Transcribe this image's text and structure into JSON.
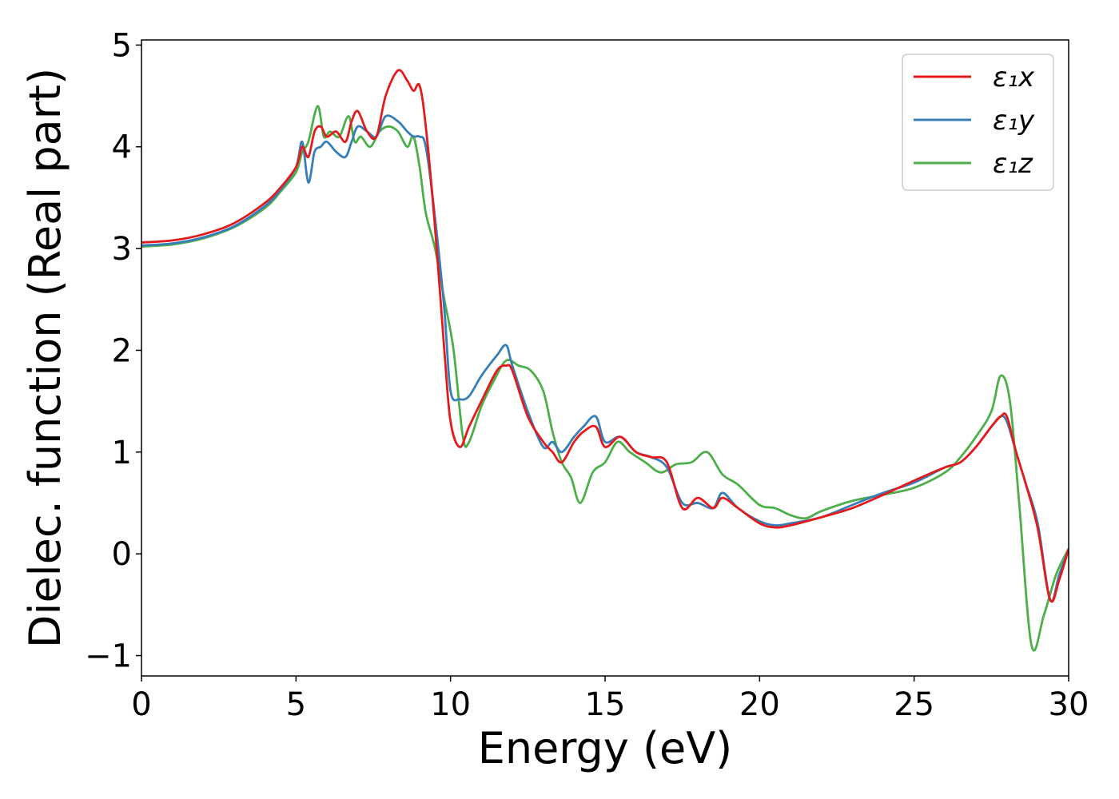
{
  "chart_data": {
    "type": "line",
    "title": "",
    "xlabel": "Energy (eV)",
    "ylabel": "Dielec. function (Real part)",
    "xlim": [
      0,
      30
    ],
    "ylim": [
      -1.2,
      5.05
    ],
    "xticks": [
      0,
      5,
      10,
      15,
      20,
      25,
      30
    ],
    "xtick_labels": [
      "0",
      "5",
      "10",
      "15",
      "20",
      "25",
      "30"
    ],
    "yticks": [
      -1,
      0,
      1,
      2,
      3,
      4,
      5
    ],
    "ytick_labels": [
      "−1",
      "0",
      "1",
      "2",
      "3",
      "4",
      "5"
    ],
    "grid": false,
    "legend_position": "top-right",
    "series": [
      {
        "name": "ε₁x",
        "color": "#e41a1c",
        "x": [
          0,
          1,
          2,
          3,
          4,
          4.5,
          5,
          5.2,
          5.4,
          5.6,
          5.8,
          6,
          6.3,
          6.6,
          6.8,
          7,
          7.3,
          7.6,
          7.9,
          8.3,
          8.6,
          8.8,
          9,
          9.2,
          9.5,
          9.8,
          10.0,
          10.3,
          10.6,
          11,
          11.5,
          11.8,
          12,
          12.5,
          13,
          13.3,
          13.6,
          14,
          14.3,
          14.7,
          15,
          15.5,
          16,
          16.5,
          17,
          17.5,
          18,
          18.5,
          18.8,
          19.3,
          20,
          20.5,
          21,
          22,
          23,
          24,
          25,
          26,
          26.5,
          27,
          27.5,
          27.8,
          28,
          28.3,
          28.6,
          29,
          29.4,
          29.7,
          30
        ],
        "y": [
          3.06,
          3.08,
          3.14,
          3.25,
          3.45,
          3.6,
          3.8,
          4.0,
          3.9,
          4.15,
          4.2,
          4.1,
          4.15,
          4.05,
          4.25,
          4.35,
          4.15,
          4.1,
          4.5,
          4.75,
          4.65,
          4.55,
          4.6,
          4.2,
          3.2,
          2.0,
          1.3,
          1.05,
          1.25,
          1.5,
          1.8,
          1.85,
          1.8,
          1.35,
          1.1,
          1.0,
          0.9,
          1.1,
          1.2,
          1.25,
          1.05,
          1.15,
          1.0,
          0.95,
          0.9,
          0.45,
          0.55,
          0.45,
          0.55,
          0.45,
          0.3,
          0.26,
          0.28,
          0.36,
          0.45,
          0.58,
          0.72,
          0.85,
          0.9,
          1.05,
          1.25,
          1.35,
          1.35,
          1.0,
          0.7,
          0.25,
          -0.45,
          -0.25,
          0.05
        ]
      },
      {
        "name": "ε₁y",
        "color": "#377eb8",
        "x": [
          0,
          1,
          2,
          3,
          4,
          4.5,
          5,
          5.2,
          5.4,
          5.6,
          5.8,
          6,
          6.3,
          6.6,
          6.8,
          7,
          7.3,
          7.6,
          7.9,
          8.3,
          8.6,
          8.8,
          9,
          9.2,
          9.5,
          9.8,
          10.0,
          10.3,
          10.6,
          11,
          11.5,
          11.8,
          12,
          12.5,
          13,
          13.3,
          13.6,
          14,
          14.3,
          14.7,
          15,
          15.5,
          16,
          16.5,
          17,
          17.5,
          18,
          18.5,
          18.8,
          19.3,
          20,
          20.5,
          21,
          22,
          23,
          24,
          25,
          26,
          26.5,
          27,
          27.5,
          27.8,
          28,
          28.3,
          28.6,
          29,
          29.4,
          29.7,
          30
        ],
        "y": [
          3.03,
          3.05,
          3.11,
          3.22,
          3.42,
          3.58,
          3.8,
          4.05,
          3.65,
          3.95,
          4.0,
          4.05,
          3.95,
          3.9,
          4.05,
          4.2,
          4.15,
          4.1,
          4.3,
          4.25,
          4.15,
          4.1,
          4.1,
          4.0,
          3.3,
          2.4,
          1.6,
          1.52,
          1.55,
          1.75,
          1.95,
          2.05,
          1.85,
          1.4,
          1.05,
          1.1,
          1.0,
          1.15,
          1.25,
          1.35,
          1.1,
          1.15,
          1.0,
          0.95,
          0.85,
          0.5,
          0.5,
          0.45,
          0.6,
          0.45,
          0.32,
          0.28,
          0.3,
          0.36,
          0.48,
          0.6,
          0.7,
          0.85,
          0.9,
          1.05,
          1.25,
          1.35,
          1.3,
          1.0,
          0.7,
          0.3,
          -0.45,
          -0.2,
          0.05
        ]
      },
      {
        "name": "ε₁z",
        "color": "#4daf4a",
        "x": [
          0,
          1,
          2,
          3,
          4,
          4.5,
          5,
          5.2,
          5.4,
          5.7,
          5.9,
          6.1,
          6.4,
          6.7,
          6.9,
          7.1,
          7.4,
          7.7,
          8.0,
          8.3,
          8.6,
          8.8,
          9.0,
          9.2,
          9.5,
          9.8,
          10.1,
          10.4,
          10.6,
          11,
          11.4,
          11.8,
          12.2,
          12.6,
          13,
          13.3,
          13.6,
          13.9,
          14.2,
          14.6,
          15,
          15.4,
          15.8,
          16.3,
          16.8,
          17.3,
          17.8,
          18.3,
          18.8,
          19.3,
          20,
          20.5,
          21,
          21.5,
          22,
          23,
          24,
          25,
          26,
          26.5,
          27,
          27.5,
          27.8,
          28.1,
          28.4,
          28.8,
          29.2,
          29.6,
          30
        ],
        "y": [
          3.02,
          3.04,
          3.1,
          3.21,
          3.4,
          3.56,
          3.75,
          3.95,
          4.05,
          4.4,
          4.1,
          4.15,
          4.1,
          4.3,
          4.05,
          4.1,
          4.0,
          4.15,
          4.2,
          4.15,
          4.0,
          4.1,
          3.8,
          3.35,
          3.0,
          2.5,
          2.0,
          1.15,
          1.1,
          1.45,
          1.7,
          1.9,
          1.85,
          1.8,
          1.6,
          1.2,
          0.9,
          0.75,
          0.5,
          0.8,
          0.9,
          1.1,
          1.0,
          0.9,
          0.8,
          0.88,
          0.9,
          1.0,
          0.78,
          0.68,
          0.48,
          0.45,
          0.38,
          0.35,
          0.42,
          0.52,
          0.58,
          0.65,
          0.8,
          0.95,
          1.15,
          1.4,
          1.75,
          1.5,
          0.5,
          -0.9,
          -0.6,
          -0.2,
          0.05
        ]
      }
    ]
  }
}
